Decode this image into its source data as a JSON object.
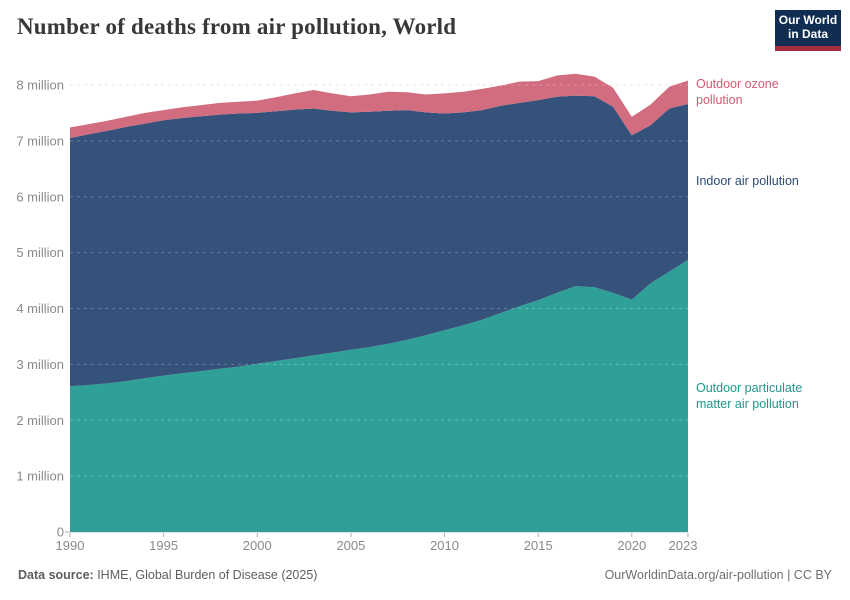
{
  "header": {
    "title": "Number of deaths from air pollution, World",
    "logo": {
      "line1": "Our World",
      "line2": "in Data"
    }
  },
  "legend": {
    "ozone": "Outdoor ozone pollution",
    "indoor": "Indoor air pollution",
    "pm": "Outdoor particulate matter air pollution"
  },
  "footer": {
    "source_label": "Data source:",
    "source_value": " IHME, Global Burden of Disease (2025)",
    "credit": "OurWorldinData.org/air-pollution | CC BY"
  },
  "colors": {
    "pm": "#2fa098",
    "indoor": "#35527b",
    "ozone": "#d26d80",
    "pm_label": "#20958a",
    "indoor_label": "#2d4b77",
    "ozone_label": "#cf5b70",
    "axis_text": "#8a8a8a",
    "grid": "#dcdcdc",
    "logo_bg": "#102d52",
    "logo_red": "#a52d3f"
  },
  "chart_data": {
    "type": "area",
    "stacked": true,
    "title": "Number of deaths from air pollution, World",
    "xlabel": "",
    "ylabel": "",
    "ylim": [
      0,
      8.35
    ],
    "grid": true,
    "legend_position": "right-of-plot",
    "x": [
      1990,
      1991,
      1992,
      1993,
      1994,
      1995,
      1996,
      1997,
      1998,
      1999,
      2000,
      2001,
      2002,
      2003,
      2004,
      2005,
      2006,
      2007,
      2008,
      2009,
      2010,
      2011,
      2012,
      2013,
      2014,
      2015,
      2016,
      2017,
      2018,
      2019,
      2020,
      2021,
      2022,
      2023
    ],
    "series": [
      {
        "name": "Outdoor particulate matter air pollution",
        "color_key": "pm",
        "unit": "million deaths",
        "values": [
          2.61,
          2.63,
          2.66,
          2.7,
          2.75,
          2.8,
          2.84,
          2.88,
          2.92,
          2.96,
          3.01,
          3.06,
          3.11,
          3.16,
          3.21,
          3.26,
          3.31,
          3.37,
          3.44,
          3.52,
          3.61,
          3.7,
          3.8,
          3.92,
          4.04,
          4.15,
          4.28,
          4.4,
          4.38,
          4.28,
          4.16,
          4.45,
          4.66,
          4.87
        ]
      },
      {
        "name": "Indoor air pollution",
        "color_key": "indoor",
        "unit": "million deaths",
        "values": [
          4.44,
          4.49,
          4.52,
          4.55,
          4.56,
          4.57,
          4.57,
          4.56,
          4.55,
          4.53,
          4.49,
          4.47,
          4.45,
          4.42,
          4.33,
          4.25,
          4.21,
          4.17,
          4.11,
          3.99,
          3.88,
          3.81,
          3.75,
          3.71,
          3.64,
          3.58,
          3.51,
          3.41,
          3.42,
          3.33,
          2.94,
          2.83,
          2.92,
          2.79
        ]
      },
      {
        "name": "Outdoor ozone pollution",
        "color_key": "ozone",
        "unit": "million deaths",
        "values": [
          0.19,
          0.18,
          0.18,
          0.18,
          0.19,
          0.18,
          0.19,
          0.2,
          0.21,
          0.21,
          0.22,
          0.25,
          0.29,
          0.33,
          0.31,
          0.29,
          0.31,
          0.34,
          0.32,
          0.32,
          0.36,
          0.37,
          0.38,
          0.36,
          0.38,
          0.34,
          0.38,
          0.39,
          0.35,
          0.34,
          0.33,
          0.37,
          0.39,
          0.42
        ]
      }
    ],
    "x_ticks": [
      {
        "value": 1990,
        "label": "1990"
      },
      {
        "value": 1995,
        "label": "1995"
      },
      {
        "value": 2000,
        "label": "2000"
      },
      {
        "value": 2005,
        "label": "2005"
      },
      {
        "value": 2010,
        "label": "2010"
      },
      {
        "value": 2015,
        "label": "2015"
      },
      {
        "value": 2020,
        "label": "2020"
      },
      {
        "value": 2023,
        "label": "2023"
      }
    ],
    "y_ticks": [
      {
        "value": 0,
        "label": "0"
      },
      {
        "value": 1,
        "label": "1 million"
      },
      {
        "value": 2,
        "label": "2 million"
      },
      {
        "value": 3,
        "label": "3 million"
      },
      {
        "value": 4,
        "label": "4 million"
      },
      {
        "value": 5,
        "label": "5 million"
      },
      {
        "value": 6,
        "label": "6 million"
      },
      {
        "value": 7,
        "label": "7 million"
      },
      {
        "value": 8,
        "label": "8 million"
      }
    ]
  }
}
